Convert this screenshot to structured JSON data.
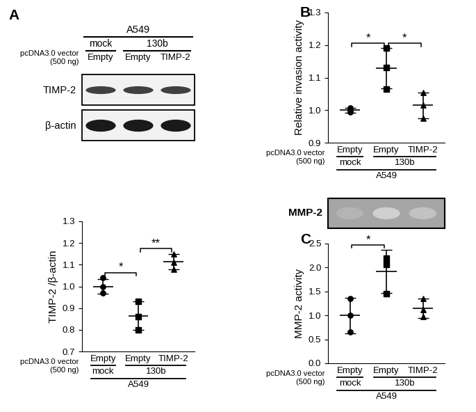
{
  "chart_data": [
    {
      "panel": "A",
      "type": "scatter",
      "ylabel": "TIMP-2 /β-actin",
      "categories": [
        "Empty",
        "Empty",
        "TIMP-2"
      ],
      "x_title": "pcDNA3.0 vector\n(500 ng)",
      "groups": [
        {
          "label": "mock",
          "lanes": [
            0,
            0
          ]
        },
        {
          "label": "130b",
          "lanes": [
            1,
            2
          ]
        }
      ],
      "cell_line": "A549",
      "ylim": [
        0.7,
        1.3
      ],
      "yticks": [
        0.7,
        0.8,
        0.9,
        1.0,
        1.1,
        1.2,
        1.3
      ],
      "series": [
        {
          "values": [
            1.04,
            1.0,
            0.97
          ],
          "mean": 1.0,
          "error": 0.035,
          "marker": "circle",
          "color": "#000000"
        },
        {
          "values": [
            0.93,
            0.86,
            0.8
          ],
          "mean": 0.865,
          "error": 0.065,
          "marker": "square",
          "color": "#000000"
        },
        {
          "values": [
            1.15,
            1.11,
            1.08
          ],
          "mean": 1.115,
          "error": 0.035,
          "marker": "triangle",
          "color": "#000000"
        }
      ],
      "comparisons": [
        {
          "between": [
            0,
            1
          ],
          "label": "*"
        },
        {
          "between": [
            1,
            2
          ],
          "label": "**"
        }
      ]
    },
    {
      "panel": "B",
      "type": "scatter",
      "ylabel": "Relative invasion activity",
      "categories": [
        "Empty",
        "Empty",
        "TIMP-2"
      ],
      "x_title": "pcDNA3.0 vector\n(500 ng)",
      "groups": [
        {
          "label": "mock",
          "lanes": [
            0,
            0
          ]
        },
        {
          "label": "130b",
          "lanes": [
            1,
            2
          ]
        }
      ],
      "cell_line": "A549",
      "ylim": [
        0.9,
        1.3
      ],
      "yticks": [
        0.9,
        1.0,
        1.1,
        1.2,
        1.3
      ],
      "series": [
        {
          "values": [
            1.007,
            1.0,
            0.995
          ],
          "mean": 1.0,
          "error": 0.008,
          "marker": "circle",
          "color": "#000000"
        },
        {
          "values": [
            1.19,
            1.13,
            1.065
          ],
          "mean": 1.128,
          "error": 0.062,
          "marker": "square",
          "color": "#000000"
        },
        {
          "values": [
            1.055,
            1.015,
            0.975
          ],
          "mean": 1.015,
          "error": 0.04,
          "marker": "triangle",
          "color": "#000000"
        }
      ],
      "comparisons": [
        {
          "between": [
            0,
            1
          ],
          "label": "*"
        },
        {
          "between": [
            1,
            2
          ],
          "label": "*"
        }
      ]
    },
    {
      "panel": "C",
      "type": "scatter",
      "ylabel": "MMP-2 activity",
      "categories": [
        "Empty",
        "Empty",
        "TIMP-2"
      ],
      "x_title": "pcDNA3.0 vector\n(500 ng)",
      "groups": [
        {
          "label": "mock",
          "lanes": [
            0,
            0
          ]
        },
        {
          "label": "130b",
          "lanes": [
            1,
            2
          ]
        }
      ],
      "cell_line": "A549",
      "ylim": [
        0.0,
        2.5
      ],
      "yticks": [
        0.0,
        0.5,
        1.0,
        1.5,
        2.0,
        2.5
      ],
      "series": [
        {
          "values": [
            1.35,
            1.0,
            0.65
          ],
          "mean": 1.0,
          "error": 0.37,
          "marker": "circle",
          "color": "#000000"
        },
        {
          "values": [
            2.2,
            2.07,
            1.45
          ],
          "mean": 1.92,
          "error": 0.45,
          "marker": "square",
          "color": "#000000"
        },
        {
          "values": [
            1.35,
            1.12,
            0.97
          ],
          "mean": 1.15,
          "error": 0.2,
          "marker": "triangle",
          "color": "#000000"
        }
      ],
      "comparisons": [
        {
          "between": [
            0,
            1
          ],
          "label": "*"
        }
      ]
    }
  ],
  "blot": {
    "cell_line": "A549",
    "groups": [
      {
        "label": "mock",
        "lanes": [
          0,
          0
        ]
      },
      {
        "label": "130b",
        "lanes": [
          1,
          2
        ]
      }
    ],
    "vector_label": "pcDNA3.0 vector\n(500 ng)",
    "lanes": [
      "Empty",
      "Empty",
      "TIMP-2"
    ],
    "bands": [
      "TIMP-2",
      "β-actin"
    ]
  },
  "zymogram": {
    "band": "MMP-2"
  }
}
